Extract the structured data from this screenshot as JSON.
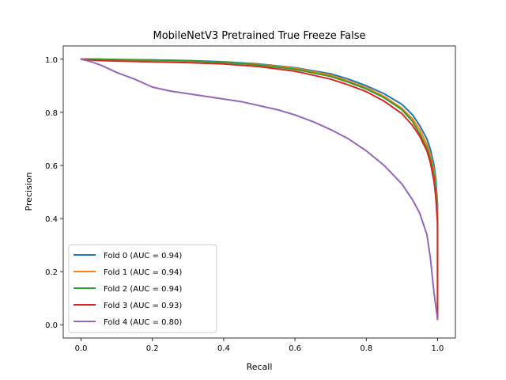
{
  "chart_data": {
    "type": "line",
    "title": "MobileNetV3 Pretrained True Freeze False",
    "xlabel": "Recall",
    "ylabel": "Precision",
    "xlim": [
      -0.05,
      1.05
    ],
    "ylim": [
      -0.05,
      1.05
    ],
    "xticks": [
      "0.0",
      "0.2",
      "0.4",
      "0.6",
      "0.8",
      "1.0"
    ],
    "yticks": [
      "0.0",
      "0.2",
      "0.4",
      "0.6",
      "0.8",
      "1.0"
    ],
    "grid": false,
    "legend_position": "lower-left",
    "series": [
      {
        "name": "Fold 0 (AUC = 0.94)",
        "color": "#1f77b4",
        "x": [
          0.0,
          0.05,
          0.1,
          0.2,
          0.3,
          0.4,
          0.5,
          0.6,
          0.7,
          0.75,
          0.8,
          0.85,
          0.9,
          0.93,
          0.95,
          0.97,
          0.98,
          0.99,
          0.995,
          1.0,
          1.0
        ],
        "y": [
          1.0,
          1.0,
          0.998,
          0.997,
          0.995,
          0.99,
          0.982,
          0.968,
          0.945,
          0.925,
          0.9,
          0.87,
          0.83,
          0.79,
          0.75,
          0.7,
          0.66,
          0.6,
          0.55,
          0.45,
          0.02
        ]
      },
      {
        "name": "Fold 1 (AUC = 0.94)",
        "color": "#ff7f0e",
        "x": [
          0.0,
          0.05,
          0.1,
          0.2,
          0.3,
          0.4,
          0.5,
          0.6,
          0.7,
          0.75,
          0.8,
          0.85,
          0.9,
          0.93,
          0.95,
          0.97,
          0.98,
          0.99,
          0.995,
          1.0,
          1.0
        ],
        "y": [
          1.0,
          1.0,
          0.998,
          0.996,
          0.993,
          0.988,
          0.98,
          0.966,
          0.94,
          0.918,
          0.893,
          0.86,
          0.815,
          0.775,
          0.735,
          0.68,
          0.64,
          0.58,
          0.52,
          0.42,
          0.02
        ]
      },
      {
        "name": "Fold 2 (AUC = 0.94)",
        "color": "#2ca02c",
        "x": [
          0.0,
          0.05,
          0.1,
          0.2,
          0.3,
          0.4,
          0.5,
          0.6,
          0.7,
          0.75,
          0.8,
          0.85,
          0.9,
          0.93,
          0.95,
          0.97,
          0.98,
          0.99,
          0.995,
          1.0,
          1.0
        ],
        "y": [
          1.0,
          1.0,
          0.999,
          0.997,
          0.994,
          0.988,
          0.978,
          0.962,
          0.935,
          0.913,
          0.888,
          0.855,
          0.81,
          0.765,
          0.72,
          0.665,
          0.625,
          0.56,
          0.5,
          0.4,
          0.02
        ]
      },
      {
        "name": "Fold 3 (AUC = 0.93)",
        "color": "#d62728",
        "x": [
          0.0,
          0.05,
          0.1,
          0.2,
          0.3,
          0.4,
          0.5,
          0.6,
          0.7,
          0.75,
          0.8,
          0.85,
          0.9,
          0.93,
          0.95,
          0.97,
          0.98,
          0.99,
          0.995,
          1.0,
          1.0
        ],
        "y": [
          1.0,
          0.995,
          0.993,
          0.99,
          0.987,
          0.982,
          0.972,
          0.955,
          0.925,
          0.903,
          0.878,
          0.842,
          0.795,
          0.75,
          0.71,
          0.655,
          0.61,
          0.54,
          0.48,
          0.38,
          0.02
        ]
      },
      {
        "name": "Fold 4 (AUC = 0.80)",
        "color": "#9467bd",
        "x": [
          0.0,
          0.03,
          0.06,
          0.1,
          0.15,
          0.2,
          0.25,
          0.3,
          0.35,
          0.4,
          0.45,
          0.5,
          0.55,
          0.6,
          0.65,
          0.7,
          0.75,
          0.8,
          0.85,
          0.9,
          0.93,
          0.95,
          0.97,
          0.98,
          0.99,
          1.0
        ],
        "y": [
          1.0,
          0.99,
          0.975,
          0.95,
          0.925,
          0.895,
          0.88,
          0.87,
          0.86,
          0.85,
          0.84,
          0.825,
          0.81,
          0.79,
          0.765,
          0.735,
          0.7,
          0.655,
          0.6,
          0.53,
          0.47,
          0.42,
          0.34,
          0.25,
          0.12,
          0.02
        ]
      }
    ]
  }
}
